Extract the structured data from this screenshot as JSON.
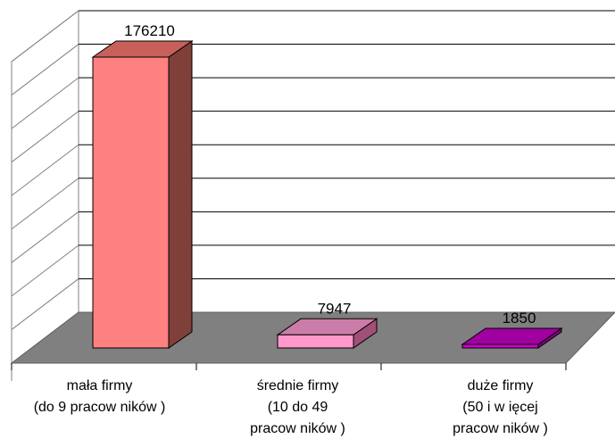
{
  "chart_data": {
    "type": "bar",
    "title": "",
    "xlabel": "",
    "ylabel": "",
    "categories": [
      [
        "mała firmy",
        "(do 9 pracow ników )"
      ],
      [
        "średnie firmy",
        "(10 do 49",
        "pracow ników )"
      ],
      [
        "duże firmy",
        "(50 i w ięcej",
        "pracow ników )"
      ]
    ],
    "values": [
      176210,
      7947,
      1850
    ],
    "data_labels": [
      "176210",
      "7947",
      "1850"
    ],
    "ylim": [
      0,
      180000
    ],
    "grid": true,
    "three_d": true,
    "colors": {
      "bars_front": [
        "#ff8080",
        "#ff99cc",
        "#cc00cc"
      ],
      "bars_top": [
        "#c8605a",
        "#cc7ca8",
        "#a000a0"
      ],
      "bars_side": [
        "#80403a",
        "#a05078",
        "#800080"
      ],
      "floor": "#808080",
      "gridline": "#000000"
    }
  }
}
